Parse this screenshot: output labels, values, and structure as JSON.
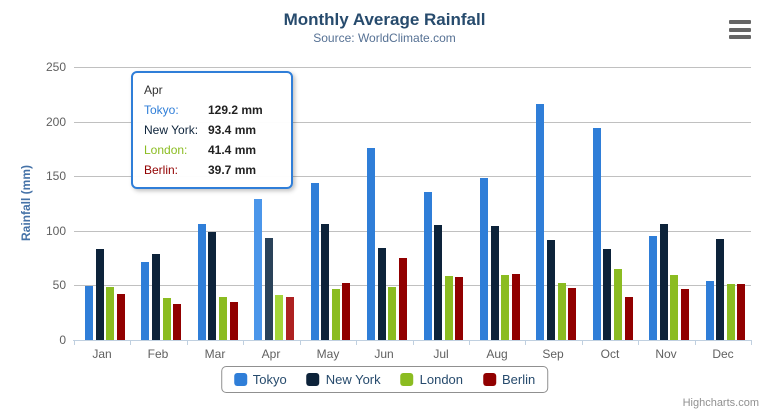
{
  "chart": {
    "credits_label": "Highcharts.com",
    "menu_icon": "hamburger-icon"
  },
  "chart_data": {
    "type": "bar",
    "title": "Monthly Average Rainfall",
    "subtitle": "Source: WorldClimate.com",
    "categories": [
      "Jan",
      "Feb",
      "Mar",
      "Apr",
      "May",
      "Jun",
      "Jul",
      "Aug",
      "Sep",
      "Oct",
      "Nov",
      "Dec"
    ],
    "series": [
      {
        "name": "Tokyo",
        "color": "#2f7ed8",
        "hover_color": "#4b96ea",
        "values": [
          49.9,
          71.5,
          106.4,
          129.2,
          144.0,
          176.0,
          135.6,
          148.5,
          216.4,
          194.1,
          95.6,
          54.4
        ]
      },
      {
        "name": "New York",
        "color": "#0d233a",
        "hover_color": "#2a4259",
        "values": [
          83.6,
          78.8,
          98.5,
          93.4,
          106.0,
          84.5,
          105.0,
          104.3,
          91.2,
          83.5,
          106.6,
          92.3
        ]
      },
      {
        "name": "London",
        "color": "#8bbc21",
        "hover_color": "#a4d53a",
        "values": [
          48.9,
          38.8,
          39.3,
          41.4,
          47.0,
          48.3,
          59.0,
          59.6,
          52.4,
          65.2,
          59.3,
          51.2
        ]
      },
      {
        "name": "Berlin",
        "color": "#910000",
        "hover_color": "#ad2121",
        "values": [
          42.4,
          33.2,
          34.5,
          39.7,
          52.6,
          75.5,
          57.4,
          60.4,
          47.6,
          39.1,
          46.8,
          51.1
        ]
      }
    ],
    "xlabel": "",
    "ylabel": "Rainfall (mm)",
    "ylim": [
      0,
      250
    ],
    "yticks": [
      0,
      50,
      100,
      150,
      200,
      250
    ],
    "grid": true,
    "legend_position": "bottom",
    "highlighted_category": "Apr",
    "colors": {
      "title": "#274b6d",
      "subtitle": "#567194",
      "axis_labels": "#606060",
      "y_axis_title": "#4572A7",
      "gridline": "#C0C0C0",
      "axis_line": "#C0D0E0",
      "legend_text": "#274b6d"
    }
  },
  "tooltip": {
    "header": "Apr",
    "border_color": "#2f7ed8",
    "rows": [
      {
        "label": "Tokyo:",
        "value": "129.2 mm",
        "color": "#2f7ed8"
      },
      {
        "label": "New York:",
        "value": "93.4 mm",
        "color": "#0d233a"
      },
      {
        "label": "London:",
        "value": "41.4 mm",
        "color": "#8bbc21"
      },
      {
        "label": "Berlin:",
        "value": "39.7 mm",
        "color": "#910000"
      }
    ]
  }
}
